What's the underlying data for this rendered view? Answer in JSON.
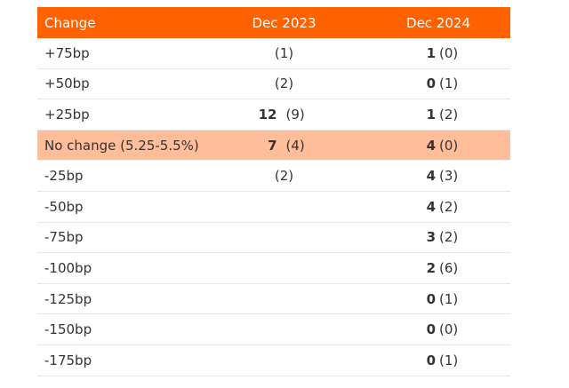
{
  "header": {
    "change": "Change",
    "dec2023": "Dec 2023",
    "dec2024": "Dec 2024"
  },
  "rows": [
    {
      "change": "+75bp",
      "d23_bold": "",
      "d23_paren": "(1)",
      "d24_bold": "1",
      "d24_paren": "(0)",
      "highlight": false
    },
    {
      "change": "+50bp",
      "d23_bold": "",
      "d23_paren": "(2)",
      "d24_bold": "0",
      "d24_paren": "(1)",
      "highlight": false
    },
    {
      "change": "+25bp",
      "d23_bold": "12",
      "d23_paren": "(9)",
      "d24_bold": "1",
      "d24_paren": "(2)",
      "highlight": false
    },
    {
      "change": "No change (5.25-5.5%)",
      "d23_bold": "7",
      "d23_paren": "(4)",
      "d24_bold": "4",
      "d24_paren": "(0)",
      "highlight": true
    },
    {
      "change": "-25bp",
      "d23_bold": "",
      "d23_paren": "(2)",
      "d24_bold": "4",
      "d24_paren": "(3)",
      "highlight": false
    },
    {
      "change": "-50bp",
      "d23_bold": "",
      "d23_paren": "",
      "d24_bold": "4",
      "d24_paren": "(2)",
      "highlight": false
    },
    {
      "change": "-75bp",
      "d23_bold": "",
      "d23_paren": "",
      "d24_bold": "3",
      "d24_paren": "(2)",
      "highlight": false
    },
    {
      "change": "-100bp",
      "d23_bold": "",
      "d23_paren": "",
      "d24_bold": "2",
      "d24_paren": "(6)",
      "highlight": false
    },
    {
      "change": "-125bp",
      "d23_bold": "",
      "d23_paren": "",
      "d24_bold": "0",
      "d24_paren": "(1)",
      "highlight": false
    },
    {
      "change": "-150bp",
      "d23_bold": "",
      "d23_paren": "",
      "d24_bold": "0",
      "d24_paren": "(0)",
      "highlight": false
    },
    {
      "change": "-175bp",
      "d23_bold": "",
      "d23_paren": "",
      "d24_bold": "0",
      "d24_paren": "(1)",
      "highlight": false
    }
  ],
  "colors": {
    "header_bg": "#ff6200",
    "highlight_bg": "#ffbd99"
  }
}
